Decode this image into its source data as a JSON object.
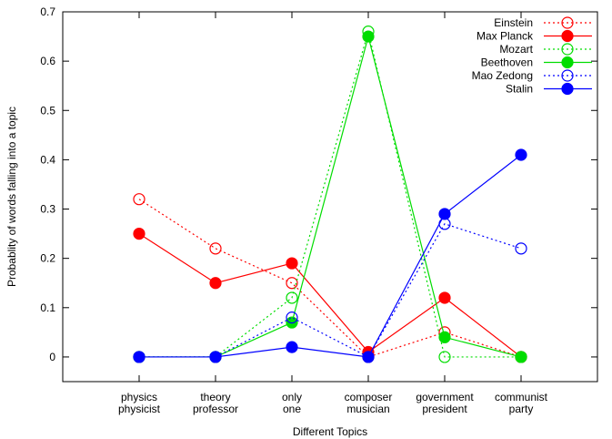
{
  "chart_data": {
    "type": "line",
    "title": "",
    "xlabel": "Different Topics",
    "ylabel": "Probablity of words falling into a topic",
    "ylim": [
      -0.05,
      0.7
    ],
    "yticks": [
      0,
      0.1,
      0.2,
      0.3,
      0.4,
      0.5,
      0.6,
      0.7
    ],
    "ytick_labels": [
      "0",
      "0.1",
      "0.2",
      "0.3",
      "0.4",
      "0.5",
      "0.6",
      "0.7"
    ],
    "categories": [
      [
        "physics",
        "physicist"
      ],
      [
        "theory",
        "professor"
      ],
      [
        "only",
        "one"
      ],
      [
        "composer",
        "musician"
      ],
      [
        "government",
        "president"
      ],
      [
        "communist",
        "party"
      ]
    ],
    "grid": false,
    "legend_position": "top-right",
    "series": [
      {
        "name": "Einstein",
        "color": "#ff0000",
        "dashed": true,
        "marker": "open-circle",
        "values": [
          0.32,
          0.22,
          0.15,
          0.0,
          0.05,
          0.0
        ]
      },
      {
        "name": "Max Planck",
        "color": "#ff0000",
        "dashed": false,
        "marker": "filled-circle",
        "values": [
          0.25,
          0.15,
          0.19,
          0.01,
          0.12,
          0.0
        ]
      },
      {
        "name": "Mozart",
        "color": "#00dd00",
        "dashed": true,
        "marker": "open-circle",
        "values": [
          0.0,
          0.0,
          0.12,
          0.66,
          0.0,
          0.0
        ]
      },
      {
        "name": "Beethoven",
        "color": "#00dd00",
        "dashed": false,
        "marker": "filled-circle",
        "values": [
          0.0,
          0.0,
          0.07,
          0.65,
          0.04,
          0.0
        ]
      },
      {
        "name": "Mao Zedong",
        "color": "#0000ff",
        "dashed": true,
        "marker": "open-circle",
        "values": [
          0.0,
          0.0,
          0.08,
          0.0,
          0.27,
          0.22
        ]
      },
      {
        "name": "Stalin",
        "color": "#0000ff",
        "dashed": false,
        "marker": "filled-circle",
        "values": [
          0.0,
          0.0,
          0.02,
          0.0,
          0.29,
          0.41
        ]
      }
    ]
  }
}
